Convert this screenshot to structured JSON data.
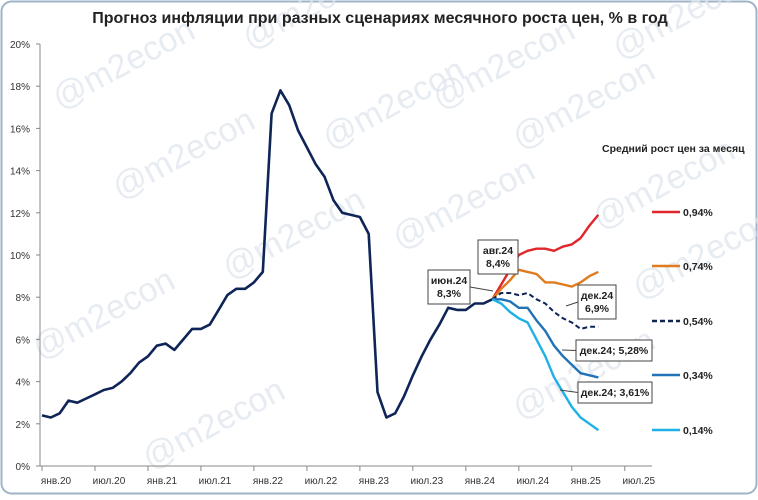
{
  "chart_data": {
    "type": "line",
    "title": "Прогноз инфляции при разных сценариях месячного роста цен, % в год",
    "watermark": "@m2econ",
    "legend_title": "Средний рост цен за месяц",
    "categories": [
      "янв.20",
      null,
      null,
      null,
      null,
      null,
      "июл.20",
      null,
      null,
      null,
      null,
      null,
      "янв.21",
      null,
      null,
      null,
      null,
      null,
      "июл.21",
      null,
      null,
      null,
      null,
      null,
      "янв.22",
      null,
      null,
      null,
      null,
      null,
      "июл.22",
      null,
      null,
      null,
      null,
      null,
      "янв.23",
      null,
      null,
      null,
      null,
      null,
      "июл.23",
      null,
      null,
      null,
      null,
      null,
      "янв.24",
      null,
      null,
      null,
      null,
      null,
      "июл.24",
      null,
      null,
      null,
      null,
      null,
      "янв.25",
      null,
      null,
      null,
      null,
      null,
      "июл.25",
      null,
      null
    ],
    "ylim": [
      0,
      20
    ],
    "yticks": [
      {
        "value": 0,
        "label": "0%"
      },
      {
        "value": 2,
        "label": "2%"
      },
      {
        "value": 4,
        "label": "4%"
      },
      {
        "value": 6,
        "label": "6%"
      },
      {
        "value": 8,
        "label": "8%"
      },
      {
        "value": 10,
        "label": "10%"
      },
      {
        "value": 12,
        "label": "12%"
      },
      {
        "value": 14,
        "label": "14%"
      },
      {
        "value": 16,
        "label": "16%"
      },
      {
        "value": 18,
        "label": "18%"
      },
      {
        "value": 20,
        "label": "20%"
      }
    ],
    "grid": false,
    "series": [
      {
        "name": null,
        "color": "#0f2557",
        "width": 2.6,
        "dashed": false,
        "values": [
          2.4,
          2.3,
          2.5,
          3.1,
          3.0,
          3.2,
          3.4,
          3.6,
          3.7,
          4.0,
          4.4,
          4.9,
          5.2,
          5.7,
          5.8,
          5.5,
          6.0,
          6.5,
          6.5,
          6.7,
          7.4,
          8.1,
          8.4,
          8.4,
          8.7,
          9.2,
          16.7,
          17.8,
          17.1,
          15.9,
          15.1,
          14.3,
          13.7,
          12.6,
          12.0,
          11.9,
          11.8,
          11.0,
          3.5,
          2.3,
          2.5,
          3.3,
          4.3,
          5.2,
          6.0,
          6.7,
          7.5,
          7.4,
          7.4,
          7.7,
          7.7,
          7.9,
          null,
          null,
          null,
          null,
          null,
          null,
          null,
          null,
          null,
          null,
          null,
          null,
          null,
          null,
          null,
          null,
          null
        ]
      },
      {
        "name": "0,94%",
        "color": "#e0262a",
        "width": 2.4,
        "dashed": false,
        "values": [
          null,
          null,
          null,
          null,
          null,
          null,
          null,
          null,
          null,
          null,
          null,
          null,
          null,
          null,
          null,
          null,
          null,
          null,
          null,
          null,
          null,
          null,
          null,
          null,
          null,
          null,
          null,
          null,
          null,
          null,
          null,
          null,
          null,
          null,
          null,
          null,
          null,
          null,
          null,
          null,
          null,
          null,
          null,
          null,
          null,
          null,
          null,
          null,
          null,
          null,
          null,
          7.9,
          8.6,
          9.3,
          10.0,
          10.2,
          10.3,
          10.3,
          10.2,
          10.4,
          10.5,
          10.8,
          11.4,
          11.9,
          null,
          null,
          null,
          null,
          null
        ]
      },
      {
        "name": "0,74%",
        "color": "#e07b20",
        "width": 2.4,
        "dashed": false,
        "values": [
          null,
          null,
          null,
          null,
          null,
          null,
          null,
          null,
          null,
          null,
          null,
          null,
          null,
          null,
          null,
          null,
          null,
          null,
          null,
          null,
          null,
          null,
          null,
          null,
          null,
          null,
          null,
          null,
          null,
          null,
          null,
          null,
          null,
          null,
          null,
          null,
          null,
          null,
          null,
          null,
          null,
          null,
          null,
          null,
          null,
          null,
          null,
          null,
          null,
          null,
          null,
          7.9,
          8.4,
          8.8,
          9.3,
          9.2,
          9.1,
          8.7,
          8.7,
          8.6,
          8.5,
          8.7,
          9.0,
          9.2,
          null,
          null,
          null,
          null,
          null
        ]
      },
      {
        "name": "0,54%",
        "color": "#0f2557",
        "width": 2,
        "dashed": true,
        "values": [
          null,
          null,
          null,
          null,
          null,
          null,
          null,
          null,
          null,
          null,
          null,
          null,
          null,
          null,
          null,
          null,
          null,
          null,
          null,
          null,
          null,
          null,
          null,
          null,
          null,
          null,
          null,
          null,
          null,
          null,
          null,
          null,
          null,
          null,
          null,
          null,
          null,
          null,
          null,
          null,
          null,
          null,
          null,
          null,
          null,
          null,
          null,
          null,
          null,
          null,
          null,
          7.9,
          8.2,
          8.2,
          8.1,
          8.2,
          7.9,
          7.7,
          7.3,
          7.0,
          6.8,
          6.5,
          6.6,
          6.6,
          null,
          null,
          null,
          null,
          null
        ]
      },
      {
        "name": "0,34%",
        "color": "#2272b8",
        "width": 2.4,
        "dashed": false,
        "values": [
          null,
          null,
          null,
          null,
          null,
          null,
          null,
          null,
          null,
          null,
          null,
          null,
          null,
          null,
          null,
          null,
          null,
          null,
          null,
          null,
          null,
          null,
          null,
          null,
          null,
          null,
          null,
          null,
          null,
          null,
          null,
          null,
          null,
          null,
          null,
          null,
          null,
          null,
          null,
          null,
          null,
          null,
          null,
          null,
          null,
          null,
          null,
          null,
          null,
          null,
          null,
          7.9,
          7.9,
          7.8,
          7.5,
          7.5,
          6.9,
          6.4,
          5.7,
          5.2,
          4.8,
          4.4,
          4.3,
          4.2,
          null,
          null,
          null,
          null,
          null
        ]
      },
      {
        "name": "0,14%",
        "color": "#1eb0e6",
        "width": 2.4,
        "dashed": false,
        "values": [
          null,
          null,
          null,
          null,
          null,
          null,
          null,
          null,
          null,
          null,
          null,
          null,
          null,
          null,
          null,
          null,
          null,
          null,
          null,
          null,
          null,
          null,
          null,
          null,
          null,
          null,
          null,
          null,
          null,
          null,
          null,
          null,
          null,
          null,
          null,
          null,
          null,
          null,
          null,
          null,
          null,
          null,
          null,
          null,
          null,
          null,
          null,
          null,
          null,
          null,
          null,
          7.9,
          7.7,
          7.3,
          7.0,
          6.8,
          6.0,
          5.2,
          4.2,
          3.5,
          2.8,
          2.3,
          2.0,
          1.7,
          null,
          null,
          null,
          null,
          null
        ]
      }
    ],
    "annotations": [
      {
        "lines": [
          "июн.24",
          "8,3%"
        ]
      },
      {
        "lines": [
          "авг.24",
          "8,4%"
        ]
      },
      {
        "lines": [
          "дек.24",
          "6,9%"
        ]
      },
      {
        "lines": [
          "дек.24; 5,28%"
        ]
      },
      {
        "lines": [
          "дек.24; 3,61%"
        ]
      }
    ]
  }
}
